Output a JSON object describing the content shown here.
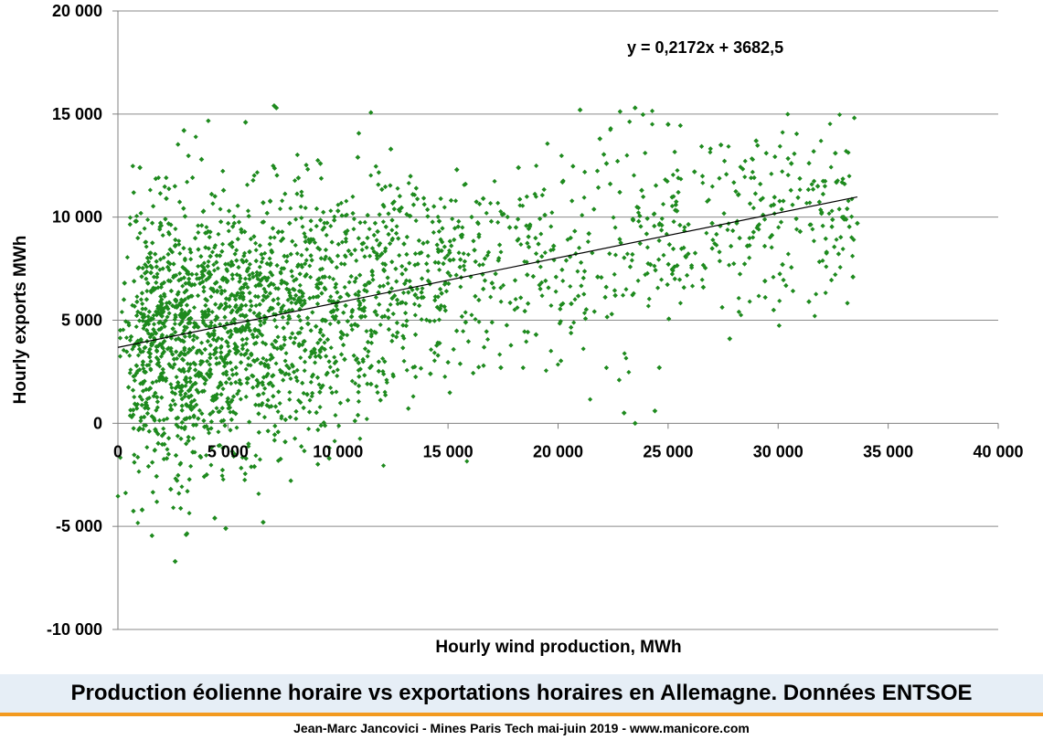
{
  "chart_data": {
    "type": "scatter",
    "title": "",
    "xlabel": "Hourly wind production, MWh",
    "ylabel": "Hourly exports MWh",
    "xlim": [
      0,
      40000
    ],
    "ylim": [
      -10000,
      20000
    ],
    "x_ticks": [
      "0",
      "5 000",
      "10 000",
      "15 000",
      "20 000",
      "25 000",
      "30 000",
      "35 000",
      "40 000"
    ],
    "y_ticks": [
      "20 000",
      "15 000",
      "10 000",
      "5 000",
      "0",
      "-5 000",
      "-10 000"
    ],
    "x_tick_values": [
      0,
      5000,
      10000,
      15000,
      20000,
      25000,
      30000,
      35000,
      40000
    ],
    "y_tick_values": [
      20000,
      15000,
      10000,
      5000,
      0,
      -5000,
      -10000
    ],
    "grid": "horizontal",
    "marker_color": "#1e8a1e",
    "series": [
      {
        "values": [
          [
            300,
            6800
          ],
          [
            600,
            4200
          ],
          [
            800,
            9800
          ],
          [
            1000,
            12400
          ],
          [
            1200,
            2500
          ],
          [
            1500,
            7300
          ],
          [
            1700,
            -300
          ],
          [
            2000,
            5200
          ],
          [
            2200,
            10900
          ],
          [
            2400,
            -3200
          ],
          [
            2600,
            8600
          ],
          [
            2800,
            3300
          ],
          [
            3000,
            14200
          ],
          [
            3200,
            6100
          ],
          [
            3400,
            -1400
          ],
          [
            3600,
            4700
          ],
          [
            3800,
            12800
          ],
          [
            4000,
            2100
          ],
          [
            4200,
            8100
          ],
          [
            4400,
            -4600
          ],
          [
            4600,
            5600
          ],
          [
            4800,
            11300
          ],
          [
            5000,
            1200
          ],
          [
            5200,
            7200
          ],
          [
            5400,
            3700
          ],
          [
            5600,
            9400
          ],
          [
            5800,
            14600
          ],
          [
            6000,
            4500
          ],
          [
            6200,
            -2100
          ],
          [
            6400,
            6700
          ],
          [
            6600,
            10700
          ],
          [
            6800,
            2800
          ],
          [
            7000,
            8300
          ],
          [
            7200,
            15300
          ],
          [
            7400,
            5400
          ],
          [
            7600,
            -900
          ],
          [
            7800,
            9700
          ],
          [
            8000,
            3900
          ],
          [
            8200,
            11900
          ],
          [
            8400,
            6300
          ],
          [
            8600,
            1400
          ],
          [
            8800,
            8900
          ],
          [
            9000,
            4700
          ],
          [
            9200,
            12600
          ],
          [
            9400,
            7100
          ],
          [
            9600,
            -1700
          ],
          [
            9800,
            5900
          ],
          [
            10000,
            10300
          ],
          [
            10300,
            3100
          ],
          [
            10600,
            8200
          ],
          [
            10900,
            12900
          ],
          [
            11200,
            5600
          ],
          [
            11500,
            1900
          ],
          [
            11800,
            9300
          ],
          [
            12100,
            7400
          ],
          [
            12400,
            13300
          ],
          [
            12700,
            4400
          ],
          [
            13000,
            8700
          ],
          [
            13400,
            11100
          ],
          [
            13800,
            6100
          ],
          [
            14200,
            2400
          ],
          [
            14600,
            9800
          ],
          [
            15000,
            7300
          ],
          [
            15400,
            12300
          ],
          [
            15800,
            4900
          ],
          [
            16200,
            8400
          ],
          [
            16600,
            10900
          ],
          [
            17000,
            6800
          ],
          [
            17400,
            2700
          ],
          [
            17800,
            9500
          ],
          [
            18200,
            12400
          ],
          [
            18600,
            7200
          ],
          [
            19000,
            4300
          ],
          [
            19400,
            10100
          ],
          [
            19800,
            8600
          ],
          [
            20200,
            11700
          ],
          [
            20600,
            5800
          ],
          [
            21000,
            15200
          ],
          [
            21400,
            9200
          ],
          [
            21800,
            7100
          ],
          [
            22200,
            12600
          ],
          [
            22600,
            6200
          ],
          [
            23000,
            500
          ],
          [
            23400,
            9900
          ],
          [
            23800,
            11300
          ],
          [
            24200,
            7700
          ],
          [
            24600,
            2700
          ],
          [
            25000,
            14500
          ],
          [
            25400,
            10300
          ],
          [
            25800,
            8100
          ],
          [
            26200,
            12200
          ],
          [
            26600,
            6600
          ],
          [
            27000,
            9700
          ],
          [
            27400,
            13500
          ],
          [
            27800,
            4100
          ],
          [
            28200,
            11100
          ],
          [
            28600,
            8600
          ],
          [
            29000,
            13700
          ],
          [
            29400,
            6900
          ],
          [
            29800,
            10600
          ],
          [
            30200,
            7700
          ],
          [
            30600,
            12600
          ],
          [
            31000,
            9300
          ],
          [
            31400,
            5900
          ],
          [
            31800,
            11500
          ],
          [
            32200,
            8300
          ],
          [
            32600,
            13100
          ],
          [
            33000,
            9900
          ],
          [
            33400,
            7100
          ],
          [
            33600,
            9700
          ],
          [
            2600,
            -6700
          ],
          [
            3100,
            -5400
          ],
          [
            4900,
            -5100
          ],
          [
            6600,
            -4800
          ],
          [
            1100,
            -4200
          ],
          [
            23500,
            0
          ],
          [
            24400,
            600
          ],
          [
            21900,
            13800
          ],
          [
            23500,
            15300
          ],
          [
            7100,
            15400
          ]
        ]
      }
    ],
    "trendline": {
      "slope": 0.2172,
      "intercept": 3682.5,
      "x_start": 0,
      "x_end": 33600,
      "color": "#000000"
    },
    "annotation": "y = 0,2172x + 3682,5"
  },
  "caption": "Production éolienne horaire vs exportations horaires en Allemagne. Données ENTSOE",
  "credit": "Jean-Marc Jancovici - Mines Paris Tech mai-juin 2019 - www.manicore.com",
  "colors": {
    "band": "#e6eef6",
    "band_border": "#f39a1f",
    "points": "#1e8a1e"
  }
}
